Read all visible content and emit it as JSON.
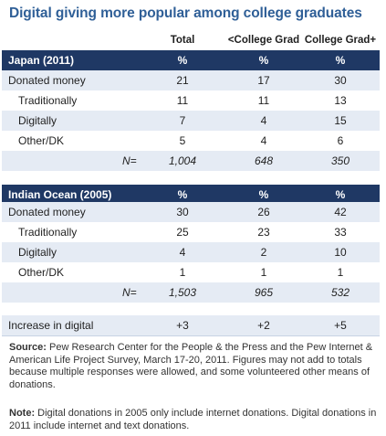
{
  "title": "Digital giving more popular among college graduates",
  "columns": [
    "Total",
    "<College Grad",
    "College Grad+"
  ],
  "japan": {
    "header": "Japan (2011)",
    "pct": [
      "%",
      "%",
      "%"
    ],
    "rows": [
      {
        "label": "Donated money",
        "values": [
          "21",
          "17",
          "30"
        ]
      },
      {
        "label": "Traditionally",
        "values": [
          "11",
          "11",
          "13"
        ]
      },
      {
        "label": "Digitally",
        "values": [
          "7",
          "4",
          "15"
        ]
      },
      {
        "label": "Other/DK",
        "values": [
          "5",
          "4",
          "6"
        ]
      }
    ],
    "n_label": "N=",
    "n_values": [
      "1,004",
      "648",
      "350"
    ]
  },
  "indian_ocean": {
    "header": "Indian Ocean (2005)",
    "pct": [
      "%",
      "%",
      "%"
    ],
    "rows": [
      {
        "label": "Donated money",
        "values": [
          "30",
          "26",
          "42"
        ]
      },
      {
        "label": "Traditionally",
        "values": [
          "25",
          "23",
          "33"
        ]
      },
      {
        "label": "Digitally",
        "values": [
          "4",
          "2",
          "10"
        ]
      },
      {
        "label": "Other/DK",
        "values": [
          "1",
          "1",
          "1"
        ]
      }
    ],
    "n_label": "N=",
    "n_values": [
      "1,503",
      "965",
      "532"
    ]
  },
  "increase": {
    "label": "Increase in digital",
    "values": [
      "+3",
      "+2",
      "+5"
    ]
  },
  "source": {
    "label": "Source:",
    "text": " Pew Research Center for the People & the Press and the Pew Internet & American Life Project Survey, March 17-20, 2011. Figures may not add to totals because multiple responses were allowed, and some volunteered other means of donations."
  },
  "note": {
    "label": "Note:",
    "text": " Digital donations in 2005 only include internet donations.  Digital donations in 2011 include internet and text donations."
  }
}
